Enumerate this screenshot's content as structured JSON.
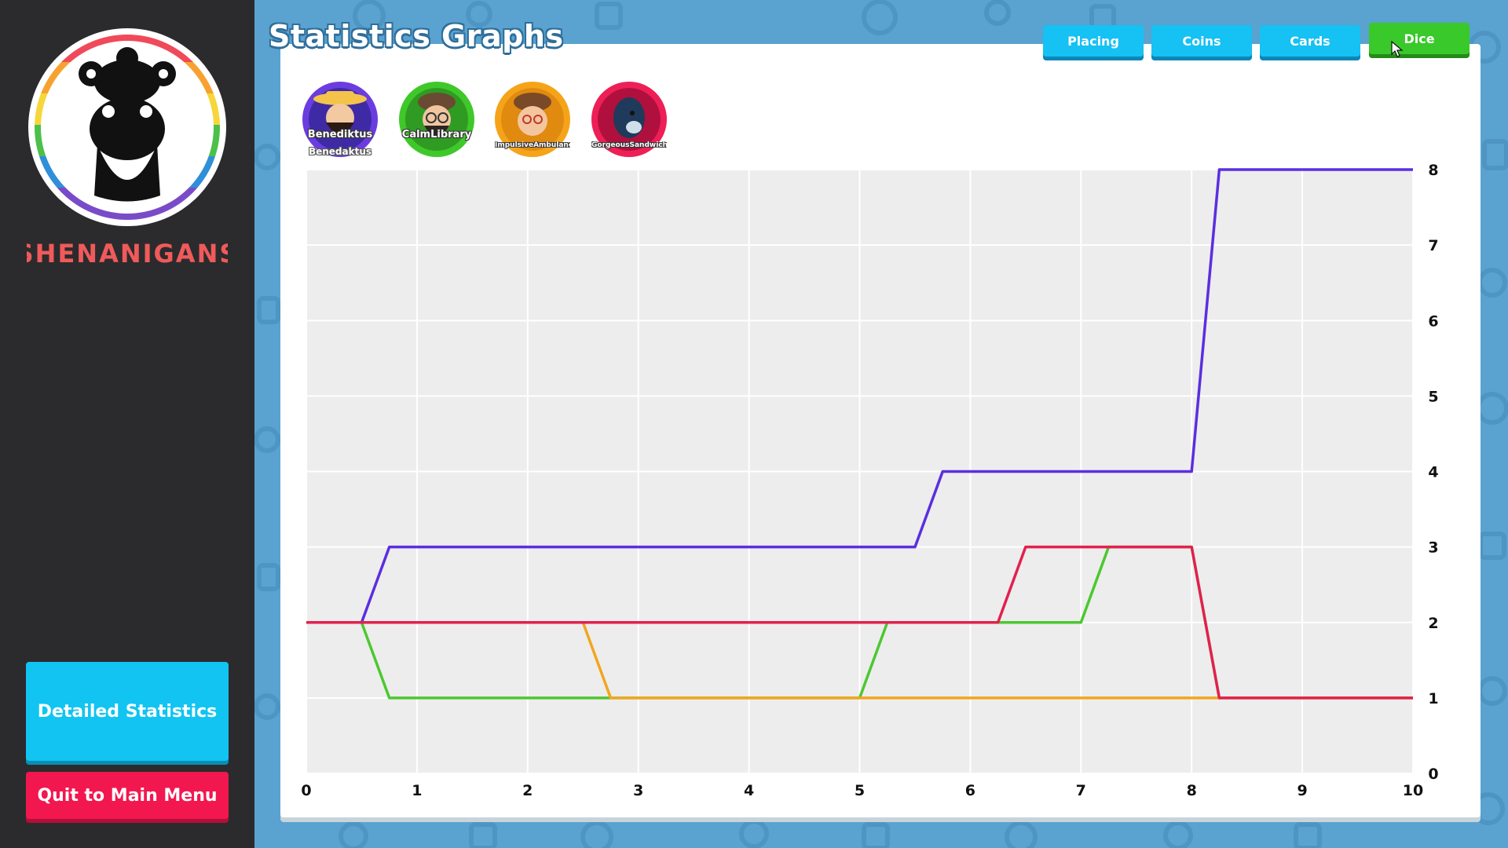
{
  "sidebar": {
    "logo_text": "SHENANIGANS",
    "buttons": {
      "detailed": "Detailed Statistics",
      "quit": "Quit to Main Menu"
    }
  },
  "header": {
    "title": "Statistics Graphs",
    "tabs": [
      {
        "label": "Placing",
        "active": false
      },
      {
        "label": "Coins",
        "active": false
      },
      {
        "label": "Cards",
        "active": false
      },
      {
        "label": "Dice",
        "active": true
      }
    ]
  },
  "players": [
    {
      "name": "Benediktus",
      "subname": "Benedaktus",
      "ring_color": "#6b3de0"
    },
    {
      "name": "CalmLibrary",
      "ring_color": "#3fc82a"
    },
    {
      "name": "ImpulsiveAmbulance",
      "ring_color": "#f5a41a"
    },
    {
      "name": "GorgeousSandwich",
      "ring_color": "#ee1f56"
    }
  ],
  "chart_data": {
    "type": "line",
    "x_ticks": [
      0,
      1,
      2,
      3,
      4,
      5,
      6,
      7,
      8,
      9,
      10
    ],
    "y_ticks": [
      0,
      1,
      2,
      3,
      4,
      5,
      6,
      7,
      8
    ],
    "xlim": [
      0,
      10
    ],
    "ylim": [
      0,
      8
    ],
    "y_axis_side": "right",
    "grid": true,
    "series": [
      {
        "color": "#5b2ee0",
        "points": [
          [
            0,
            2
          ],
          [
            0.5,
            2
          ],
          [
            0.75,
            3
          ],
          [
            5.5,
            3
          ],
          [
            5.75,
            4
          ],
          [
            8,
            4
          ],
          [
            8.25,
            8
          ],
          [
            10,
            8
          ]
        ]
      },
      {
        "color": "#4cc830",
        "points": [
          [
            0,
            2
          ],
          [
            0.5,
            2
          ],
          [
            0.75,
            1
          ],
          [
            5,
            1
          ],
          [
            5.25,
            2
          ],
          [
            7,
            2
          ],
          [
            7.25,
            3
          ],
          [
            8,
            3
          ],
          [
            8.25,
            1
          ],
          [
            10,
            1
          ]
        ]
      },
      {
        "color": "#f2a61f",
        "points": [
          [
            0,
            2
          ],
          [
            2.5,
            2
          ],
          [
            2.75,
            1
          ],
          [
            10,
            1
          ]
        ]
      },
      {
        "color": "#e3204f",
        "points": [
          [
            0,
            2
          ],
          [
            6.25,
            2
          ],
          [
            6.5,
            3
          ],
          [
            8,
            3
          ],
          [
            8.25,
            1
          ],
          [
            10,
            1
          ]
        ]
      }
    ]
  }
}
